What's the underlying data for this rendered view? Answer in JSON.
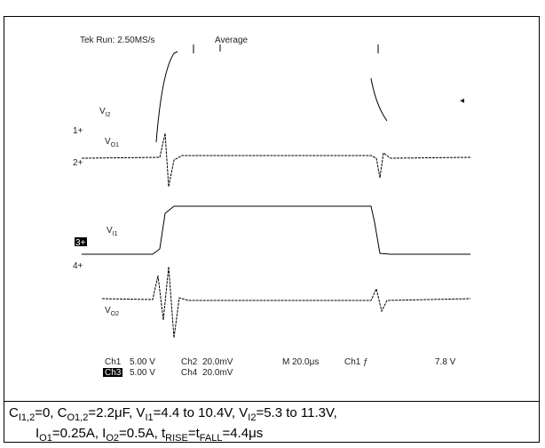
{
  "scope": {
    "header": {
      "run": "Tek Run: 2.50MS/s",
      "mode": "Average"
    },
    "markers": {
      "ch1": "1+",
      "ch2": "2+",
      "ch3": "3+",
      "ch4": "4+"
    },
    "trace_labels": [
      [
        "V",
        "I2"
      ],
      [
        "V",
        "O1"
      ],
      [
        "V",
        "I1"
      ],
      [
        "V",
        "O2"
      ]
    ],
    "settings": {
      "row1": [
        "Ch1",
        "5.00 V",
        "Ch2",
        "20.0mV",
        "M 20.0μs",
        "Ch1 ƒ",
        "7.8 V"
      ],
      "row2": [
        "Ch3",
        "5.00 V",
        "Ch4",
        "20.0mV"
      ]
    }
  },
  "caption": {
    "line1": [
      [
        "C",
        "I1,2"
      ],
      [
        "=0, C",
        "O1,2"
      ],
      [
        "=2.2μF, V",
        "I1"
      ],
      [
        "=4.4 to 10.4V, V",
        "I2"
      ],
      [
        "=5.3 to 11.3V,",
        ""
      ]
    ],
    "line2": [
      [
        "I",
        "O1"
      ],
      [
        "=0.25A, I",
        "O2"
      ],
      [
        "=0.5A, t",
        "RISE"
      ],
      [
        "=t",
        "FALL"
      ],
      [
        "=4.4μs",
        ""
      ]
    ]
  }
}
